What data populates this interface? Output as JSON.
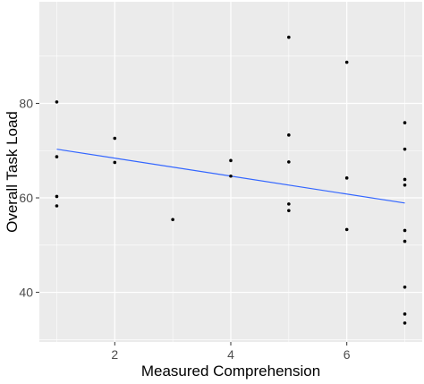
{
  "chart_data": {
    "type": "scatter",
    "xlabel": "Measured Comprehension",
    "ylabel": "Overall Task Load",
    "xlim": [
      0.7,
      7.3
    ],
    "ylim": [
      29.5,
      101.5
    ],
    "x_ticks": [
      2,
      4,
      6
    ],
    "y_ticks": [
      40,
      60,
      80
    ],
    "x_tick_labels": [
      "2",
      "4",
      "6"
    ],
    "y_tick_labels": [
      "40",
      "60",
      "80"
    ],
    "grid": true,
    "legend": "none",
    "colors": {
      "panel": "#ebebeb",
      "grid": "#ffffff",
      "point": "#000000",
      "trend": "#3366ff"
    },
    "points": [
      {
        "x": 1,
        "y": 80.3
      },
      {
        "x": 1,
        "y": 68.7
      },
      {
        "x": 1,
        "y": 60.3
      },
      {
        "x": 1,
        "y": 58.3
      },
      {
        "x": 2,
        "y": 72.6
      },
      {
        "x": 2,
        "y": 67.5
      },
      {
        "x": 3,
        "y": 55.4
      },
      {
        "x": 4,
        "y": 67.9
      },
      {
        "x": 4,
        "y": 64.6
      },
      {
        "x": 5,
        "y": 94.0
      },
      {
        "x": 5,
        "y": 73.3
      },
      {
        "x": 5,
        "y": 67.6
      },
      {
        "x": 5,
        "y": 58.7
      },
      {
        "x": 5,
        "y": 57.3
      },
      {
        "x": 6,
        "y": 88.7
      },
      {
        "x": 6,
        "y": 64.2
      },
      {
        "x": 6,
        "y": 53.3
      },
      {
        "x": 7,
        "y": 75.9
      },
      {
        "x": 7,
        "y": 70.3
      },
      {
        "x": 7,
        "y": 63.9
      },
      {
        "x": 7,
        "y": 62.7
      },
      {
        "x": 7,
        "y": 53.1
      },
      {
        "x": 7,
        "y": 50.8
      },
      {
        "x": 7,
        "y": 41.1
      },
      {
        "x": 7,
        "y": 35.4
      },
      {
        "x": 7,
        "y": 33.5
      }
    ],
    "trend_line": {
      "x": [
        1,
        7
      ],
      "y": [
        70.3,
        58.9
      ]
    }
  }
}
